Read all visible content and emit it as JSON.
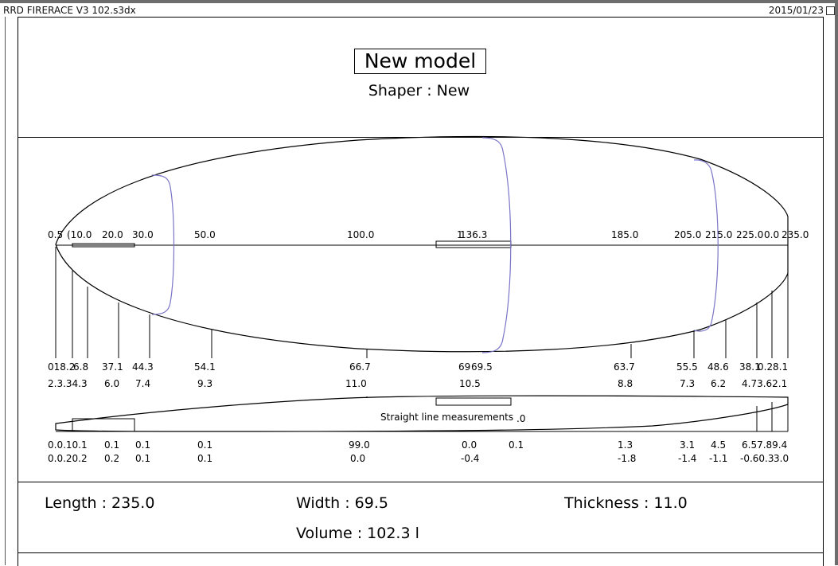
{
  "window": {
    "filename": "RRD FIRERACE V3 102.s3dx",
    "date": "2015/01/23"
  },
  "header": {
    "model_name": "New model",
    "shaper": "Shaper : New"
  },
  "diagram": {
    "length_stations": [
      "0.5",
      "(10.0",
      "20.0",
      "30.0",
      "50.0",
      "100.0",
      "136.3",
      "185.0",
      "205.0",
      "215.0",
      "225.0",
      "0.0",
      "235.0"
    ],
    "stations_extra_tick": "1",
    "width_row1": [
      "018.2",
      "6.8",
      "37.1",
      "44.3",
      "54.1",
      "66.7",
      "69",
      "69.5",
      "63.7",
      "55.5",
      "48.6",
      "38.1",
      "0.2",
      "8.1"
    ],
    "width_row2": [
      "2.3.34.3",
      "6.0",
      "7.4",
      "9.3",
      "11.0",
      "10.5",
      "8.8",
      "7.3",
      "6.2",
      "4.73.62.1"
    ],
    "straight_line_label": "Straight line measurements",
    "straight_line_tail": ".0",
    "rocker_row1": [
      "0.0.10.1",
      "0.1",
      "0.1",
      "0.1",
      "99.0",
      "0.0",
      "0.1",
      "1.3",
      "3.1",
      "4.5",
      "6.57.89.4"
    ],
    "rocker_row2": [
      "0.0.20.2",
      "0.2",
      "0.1",
      "0.1",
      "0.0",
      "-0.4",
      "-1.8",
      "-1.4",
      "-1.1",
      "-0.60.3",
      "3.0"
    ]
  },
  "stats": {
    "length": "Length : 235.0",
    "width": "Width : 69.5",
    "thickness": "Thickness : 11.0",
    "volume": "Volume : 102.3 l"
  },
  "colors": {
    "outline": "#000000",
    "section_curves": "#7b74c8"
  }
}
